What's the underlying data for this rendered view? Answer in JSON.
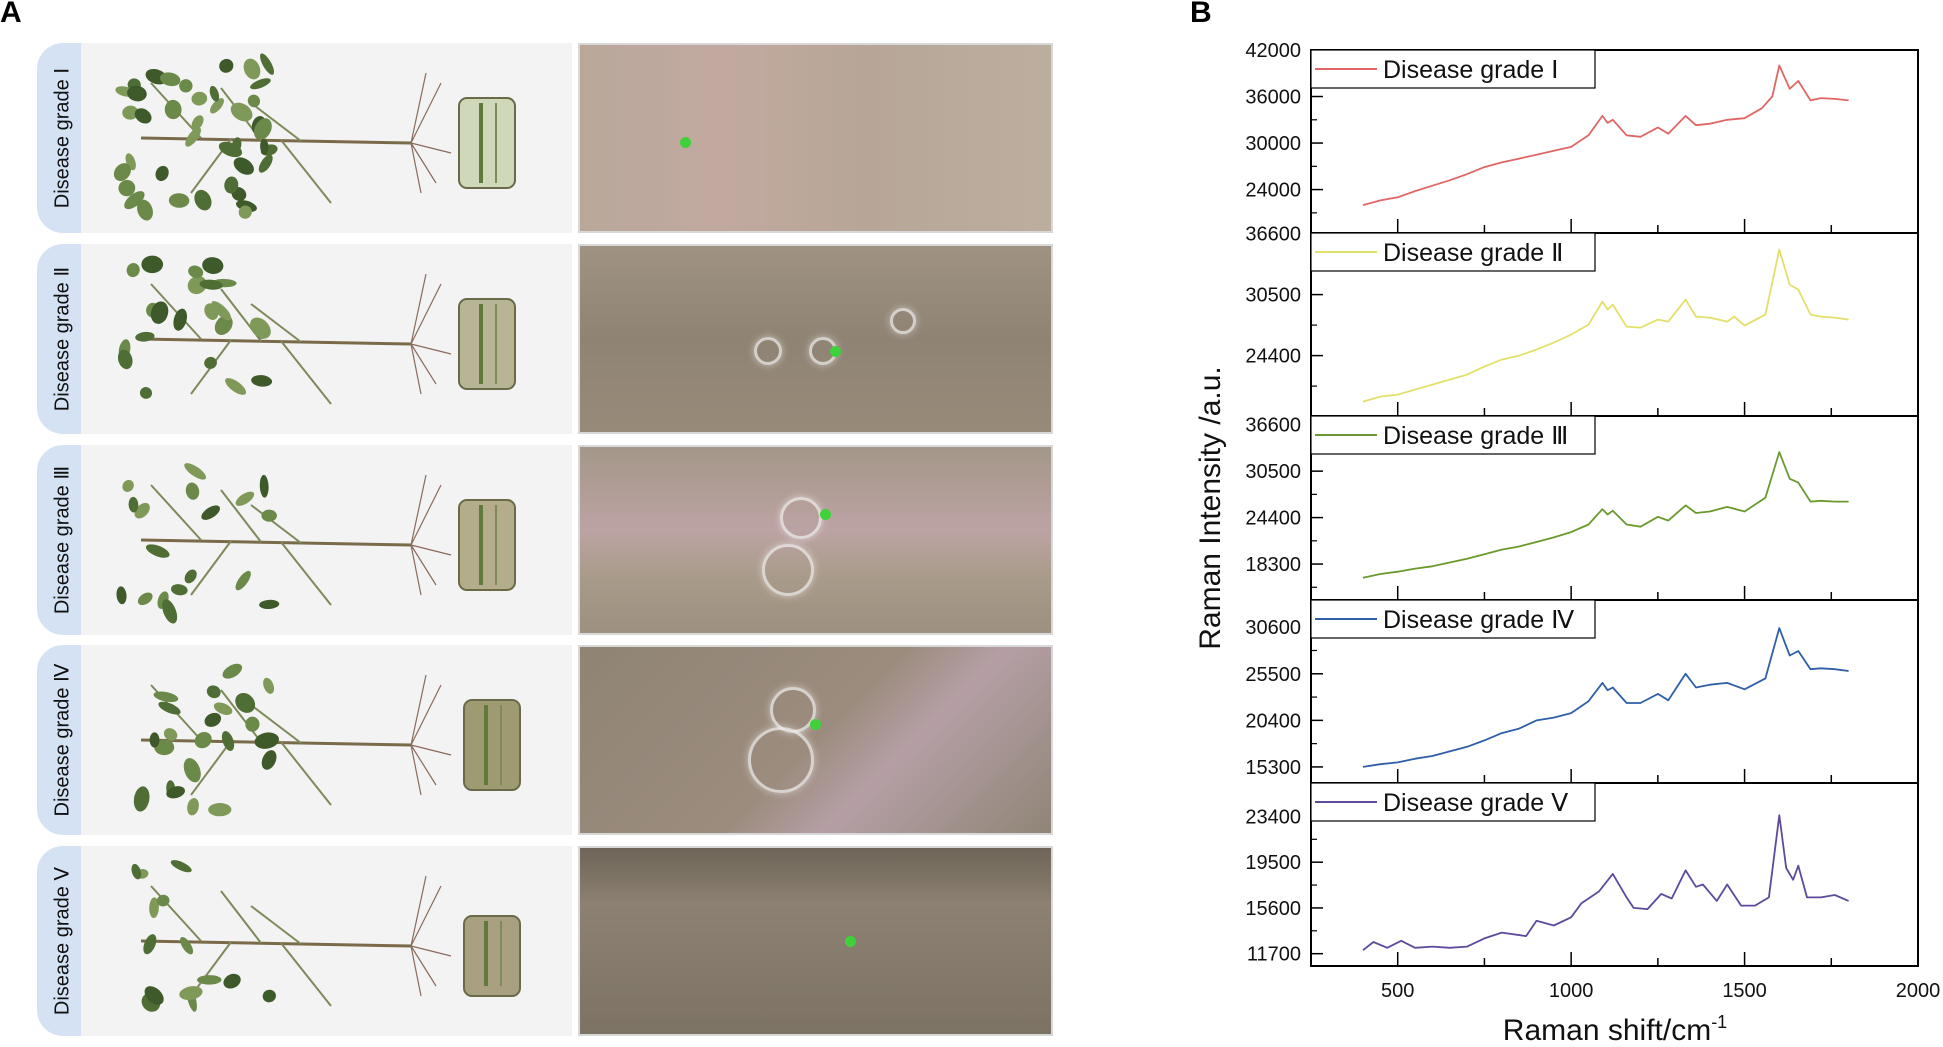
{
  "panel_a": {
    "letter": "A",
    "rows": [
      {
        "label": "Disease grade Ⅰ"
      },
      {
        "label": "Disease grade Ⅱ"
      },
      {
        "label": "Disease grade Ⅲ"
      },
      {
        "label": "Disease grade Ⅳ"
      },
      {
        "label": "Disease grade Ⅴ"
      }
    ]
  },
  "panel_b": {
    "letter": "B"
  },
  "chart_data": {
    "type": "line",
    "layout": "stacked panels sharing x axis",
    "xlabel": "Raman shift/cm",
    "xlabel_superscript": "-1",
    "ylabel": "Raman Intensity /a.u.",
    "xlim": [
      250,
      2000
    ],
    "xticks": [
      500,
      1000,
      1500,
      2000
    ],
    "grid": false,
    "legend_placement": "top-left",
    "series": [
      {
        "name": "Disease grade Ⅰ",
        "color": "#e06666",
        "ylim": [
          18400,
          42000
        ],
        "yticks": [
          42000,
          36000,
          30000,
          24000
        ],
        "x": [
          400,
          450,
          500,
          550,
          600,
          650,
          700,
          750,
          800,
          850,
          900,
          950,
          1000,
          1050,
          1090,
          1105,
          1120,
          1160,
          1200,
          1250,
          1280,
          1330,
          1360,
          1400,
          1450,
          1500,
          1550,
          1580,
          1600,
          1630,
          1655,
          1690,
          1720,
          1760,
          1800
        ],
        "y": [
          22000,
          22600,
          23000,
          23800,
          24500,
          25200,
          26000,
          26900,
          27500,
          28000,
          28500,
          29000,
          29500,
          31000,
          33500,
          32600,
          33000,
          31000,
          30800,
          32000,
          31200,
          33500,
          32300,
          32500,
          33000,
          33200,
          34500,
          36000,
          40000,
          37000,
          38000,
          35500,
          35800,
          35700,
          35500
        ]
      },
      {
        "name": "Disease grade Ⅱ",
        "color": "#e3e06a",
        "ylim": [
          18360,
          36660
        ],
        "yticks": [
          36600,
          30500,
          24400
        ],
        "x": [
          400,
          450,
          500,
          550,
          600,
          650,
          700,
          750,
          800,
          850,
          900,
          950,
          1000,
          1050,
          1090,
          1105,
          1120,
          1160,
          1200,
          1250,
          1280,
          1330,
          1360,
          1400,
          1450,
          1470,
          1500,
          1560,
          1600,
          1630,
          1655,
          1690,
          1720,
          1760,
          1800
        ],
        "y": [
          19800,
          20300,
          20500,
          21000,
          21500,
          22000,
          22500,
          23300,
          24000,
          24400,
          25000,
          25700,
          26500,
          27500,
          29800,
          29000,
          29500,
          27300,
          27200,
          28000,
          27800,
          30000,
          28300,
          28200,
          27800,
          28300,
          27400,
          28500,
          35000,
          31500,
          31000,
          28500,
          28300,
          28200,
          28000
        ]
      },
      {
        "name": "Disease grade Ⅲ",
        "color": "#6a9a2e",
        "ylim": [
          13580,
          37740
        ],
        "yticks": [
          36600,
          30500,
          24400,
          18300
        ],
        "x": [
          400,
          450,
          500,
          550,
          600,
          650,
          700,
          750,
          800,
          850,
          900,
          950,
          1000,
          1050,
          1090,
          1105,
          1120,
          1160,
          1200,
          1250,
          1280,
          1330,
          1360,
          1400,
          1450,
          1500,
          1560,
          1600,
          1630,
          1655,
          1690,
          1720,
          1760,
          1800
        ],
        "y": [
          16500,
          17000,
          17300,
          17700,
          18000,
          18500,
          19000,
          19600,
          20200,
          20600,
          21200,
          21800,
          22500,
          23500,
          25500,
          24800,
          25300,
          23500,
          23200,
          24500,
          24000,
          26000,
          25000,
          25200,
          25800,
          25200,
          27000,
          33000,
          29500,
          29000,
          26500,
          26600,
          26500,
          26500
        ]
      },
      {
        "name": "Disease grade Ⅳ",
        "color": "#2f5fa8",
        "ylim": [
          13540,
          33580
        ],
        "yticks": [
          30600,
          25500,
          20400,
          15300
        ],
        "x": [
          400,
          450,
          500,
          550,
          600,
          650,
          700,
          750,
          800,
          850,
          900,
          950,
          1000,
          1050,
          1090,
          1105,
          1120,
          1160,
          1200,
          1250,
          1280,
          1330,
          1360,
          1400,
          1450,
          1500,
          1560,
          1600,
          1630,
          1655,
          1690,
          1720,
          1760,
          1800
        ],
        "y": [
          15300,
          15600,
          15800,
          16200,
          16500,
          17000,
          17500,
          18200,
          19000,
          19500,
          20400,
          20700,
          21200,
          22500,
          24500,
          23700,
          24000,
          22300,
          22300,
          23300,
          22600,
          25500,
          24000,
          24300,
          24500,
          23800,
          25000,
          30500,
          27500,
          28000,
          26000,
          26100,
          26000,
          25800
        ]
      },
      {
        "name": "Disease grade Ⅴ",
        "color": "#5e4a9c",
        "ylim": [
          10650,
          26250
        ],
        "yticks": [
          23400,
          19500,
          15600,
          11700
        ],
        "x": [
          400,
          430,
          470,
          510,
          550,
          600,
          650,
          700,
          750,
          800,
          870,
          900,
          950,
          1000,
          1030,
          1080,
          1120,
          1160,
          1180,
          1220,
          1260,
          1290,
          1330,
          1360,
          1380,
          1420,
          1450,
          1490,
          1530,
          1570,
          1600,
          1620,
          1640,
          1655,
          1680,
          1720,
          1760,
          1800
        ],
        "y": [
          12000,
          12700,
          12200,
          12800,
          12200,
          12300,
          12200,
          12300,
          13000,
          13500,
          13200,
          14500,
          14100,
          14800,
          16000,
          17000,
          18500,
          16500,
          15600,
          15500,
          16800,
          16400,
          18800,
          17400,
          17600,
          16200,
          17600,
          15800,
          15800,
          16500,
          23500,
          19000,
          18000,
          19200,
          16500,
          16500,
          16700,
          16200
        ]
      }
    ]
  }
}
